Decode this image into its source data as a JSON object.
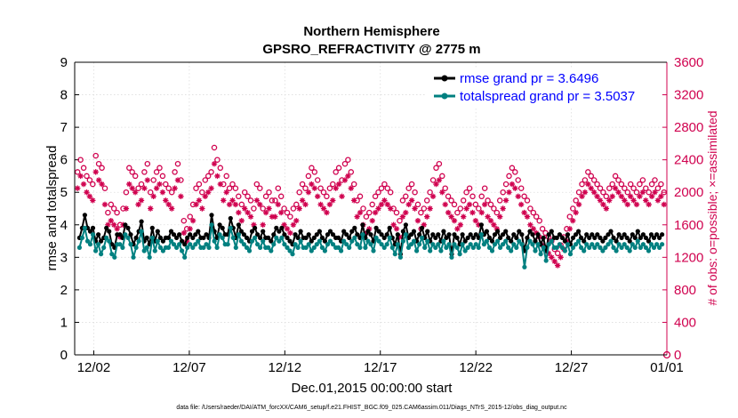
{
  "chart_data": {
    "type": "line",
    "title": "Northern Hemisphere",
    "subtitle": "GPSRO_REFRACTIVITY @ 2775 m",
    "xlabel": "Dec.01,2015 00:00:00 start",
    "ylabel_left": "rmse and totalspread",
    "ylabel_right": "# of obs: o=possible; ×=assimilated",
    "xlim": [
      0,
      31
    ],
    "ylim_left": [
      0,
      9
    ],
    "ylim_right": [
      0,
      3600
    ],
    "x_ticks": [
      {
        "value": 1,
        "label": "12/02"
      },
      {
        "value": 6,
        "label": "12/07"
      },
      {
        "value": 11,
        "label": "12/12"
      },
      {
        "value": 16,
        "label": "12/17"
      },
      {
        "value": 21,
        "label": "12/22"
      },
      {
        "value": 26,
        "label": "12/27"
      },
      {
        "value": 31,
        "label": "01/01"
      }
    ],
    "y_ticks_left": [
      "0",
      "1",
      "2",
      "3",
      "4",
      "5",
      "6",
      "7",
      "8",
      "9"
    ],
    "y_ticks_right": [
      "0",
      "400",
      "800",
      "1200",
      "1600",
      "2000",
      "2400",
      "2800",
      "3200",
      "3600"
    ],
    "colors": {
      "rmse": "#000000",
      "spread": "#008080",
      "obs": "#d0024f",
      "legend_text": "#0000ff"
    },
    "legend": [
      {
        "label": "rmse grand pr = 3.6496",
        "color": "#000000"
      },
      {
        "label": "totalspread grand pr = 3.5037",
        "color": "#008080"
      }
    ],
    "series": [
      {
        "name": "rmse",
        "axis": "left",
        "values": [
          3.6,
          3.9,
          4.3,
          3.9,
          3.8,
          3.9,
          3.5,
          3.7,
          3.5,
          3.6,
          3.9,
          3.8,
          3.4,
          3.3,
          3.7,
          3.7,
          3.6,
          4.0,
          3.9,
          3.7,
          3.4,
          3.6,
          3.8,
          4.1,
          3.5,
          3.6,
          3.4,
          3.9,
          3.5,
          3.8,
          3.6,
          3.5,
          3.6,
          3.6,
          3.8,
          3.7,
          3.6,
          3.7,
          3.5,
          3.4,
          3.6,
          3.7,
          3.6,
          3.7,
          3.8,
          3.6,
          3.6,
          3.7,
          3.6,
          4.3,
          3.8,
          3.6,
          4.0,
          3.9,
          3.7,
          3.7,
          4.2,
          3.9,
          3.6,
          4.0,
          3.8,
          3.7,
          3.6,
          3.5,
          3.8,
          3.9,
          3.7,
          3.6,
          3.8,
          3.6,
          3.6,
          3.5,
          3.7,
          3.9,
          3.8,
          3.9,
          3.7,
          3.6,
          3.5,
          3.4,
          3.7,
          3.6,
          3.8,
          3.6,
          3.6,
          3.7,
          3.5,
          3.6,
          3.7,
          3.8,
          3.6,
          3.5,
          3.7,
          3.8,
          3.7,
          3.6,
          3.6,
          3.5,
          3.8,
          3.7,
          3.6,
          3.8,
          3.9,
          3.7,
          3.6,
          4.0,
          3.6,
          3.8,
          3.7,
          3.5,
          3.9,
          3.8,
          3.7,
          3.6,
          3.7,
          3.9,
          3.6,
          3.4,
          3.7,
          3.1,
          3.8,
          4.0,
          3.6,
          3.7,
          3.8,
          3.5,
          3.7,
          3.9,
          3.6,
          3.8,
          3.5,
          3.7,
          3.6,
          3.7,
          3.5,
          3.8,
          3.6,
          3.7,
          3.1,
          3.7,
          3.6,
          3.4,
          3.7,
          3.5,
          3.6,
          3.7,
          3.6,
          3.7,
          3.6,
          4.0,
          3.7,
          3.8,
          3.6,
          3.5,
          3.7,
          3.8,
          3.6,
          3.7,
          3.8,
          3.6,
          3.5,
          3.7,
          3.6,
          3.8,
          3.7,
          3.2,
          3.6,
          3.8,
          3.7,
          3.5,
          3.7,
          3.4,
          3.6,
          3.2,
          3.7,
          3.8,
          3.6,
          3.6,
          3.7,
          3.6,
          3.5,
          3.7,
          3.4,
          3.6,
          3.7,
          3.8,
          3.6,
          3.5,
          3.7,
          3.6,
          3.7,
          3.6,
          3.7,
          3.6,
          3.5,
          3.6,
          3.7,
          3.8,
          3.6,
          3.5,
          3.7,
          3.6,
          3.7,
          3.6,
          3.5,
          3.7,
          3.6,
          3.8,
          3.6,
          3.7,
          3.6,
          3.5,
          3.7,
          3.6,
          3.7,
          3.6,
          3.7
        ]
      },
      {
        "name": "totalspread",
        "axis": "left",
        "values": [
          3.3,
          3.6,
          3.9,
          3.5,
          3.4,
          3.7,
          3.2,
          3.4,
          3.1,
          3.3,
          3.6,
          3.5,
          3.1,
          3.0,
          3.4,
          3.4,
          3.3,
          3.7,
          3.6,
          3.4,
          3.0,
          3.3,
          3.5,
          3.8,
          3.2,
          3.3,
          3.0,
          3.6,
          3.2,
          3.5,
          3.3,
          3.2,
          3.3,
          3.3,
          3.5,
          3.4,
          3.3,
          3.4,
          3.2,
          3.0,
          3.3,
          3.4,
          3.3,
          3.4,
          3.5,
          3.3,
          3.3,
          3.4,
          3.3,
          4.0,
          3.5,
          3.3,
          3.7,
          3.6,
          3.4,
          3.4,
          3.9,
          3.6,
          3.3,
          3.7,
          3.5,
          3.4,
          3.3,
          3.2,
          3.5,
          3.6,
          3.4,
          3.3,
          3.5,
          3.3,
          3.3,
          3.2,
          3.4,
          3.6,
          3.5,
          3.6,
          3.4,
          3.3,
          3.2,
          3.1,
          3.4,
          3.3,
          3.5,
          3.3,
          3.3,
          3.4,
          3.2,
          3.3,
          3.4,
          3.5,
          3.3,
          3.2,
          3.4,
          3.5,
          3.4,
          3.3,
          3.3,
          3.2,
          3.5,
          3.4,
          3.3,
          3.5,
          3.6,
          3.4,
          3.3,
          3.7,
          3.3,
          3.5,
          3.4,
          3.2,
          3.6,
          3.5,
          3.4,
          3.3,
          3.4,
          3.6,
          3.3,
          3.1,
          3.4,
          3.0,
          3.5,
          3.7,
          3.3,
          3.4,
          3.5,
          3.2,
          3.4,
          3.6,
          3.3,
          3.5,
          3.2,
          3.4,
          3.3,
          3.4,
          3.2,
          3.5,
          3.3,
          3.4,
          3.0,
          3.4,
          3.3,
          3.1,
          3.4,
          3.2,
          3.3,
          3.4,
          3.3,
          3.4,
          3.3,
          3.7,
          3.4,
          3.5,
          3.3,
          3.2,
          3.4,
          3.5,
          3.3,
          3.4,
          3.5,
          3.3,
          3.2,
          3.4,
          3.3,
          3.5,
          3.4,
          2.7,
          3.3,
          3.5,
          3.4,
          3.2,
          3.4,
          3.1,
          3.3,
          2.9,
          3.4,
          3.5,
          3.3,
          3.3,
          3.4,
          3.3,
          3.2,
          3.4,
          3.1,
          3.3,
          3.4,
          3.5,
          3.3,
          3.2,
          3.4,
          3.3,
          3.4,
          3.3,
          3.4,
          3.3,
          3.2,
          3.3,
          3.4,
          3.5,
          3.3,
          3.2,
          3.4,
          3.3,
          3.4,
          3.3,
          3.2,
          3.4,
          3.3,
          3.5,
          3.3,
          3.4,
          3.3,
          3.2,
          3.4,
          3.3,
          3.4,
          3.3,
          3.4
        ]
      },
      {
        "name": "obs possible",
        "axis": "right",
        "marker": "o",
        "values": [
          2250,
          2400,
          2300,
          2200,
          2150,
          2100,
          2450,
          2350,
          2300,
          2050,
          1750,
          1850,
          1800,
          1750,
          1600,
          1800,
          2000,
          2300,
          2250,
          2200,
          2050,
          2100,
          2250,
          2350,
          2000,
          2150,
          2250,
          2300,
          2200,
          2100,
          2050,
          2000,
          2250,
          2350,
          2150,
          1650,
          1550,
          1700,
          1850,
          2050,
          2100,
          2000,
          2150,
          2200,
          2250,
          2550,
          2400,
          2300,
          2100,
          2200,
          2050,
          2100,
          2050,
          1950,
          1850,
          2000,
          1950,
          1900,
          1800,
          2100,
          2050,
          1800,
          1950,
          2000,
          1900,
          1900,
          2050,
          1950,
          1800,
          1750,
          1700,
          1800,
          1850,
          2000,
          2100,
          2050,
          2200,
          2300,
          2250,
          2150,
          2050,
          2000,
          1950,
          2050,
          2100,
          2250,
          2300,
          2150,
          2350,
          2400,
          2250,
          2100,
          1900,
          1950,
          1800,
          1700,
          1750,
          1850,
          1950,
          2000,
          2050,
          2100,
          2050,
          2000,
          1800,
          1750,
          1650,
          1900,
          1950,
          2050,
          2100,
          2000,
          1850,
          1750,
          1800,
          1900,
          2000,
          2150,
          2300,
          2350,
          2200,
          2050,
          1950,
          1900,
          1850,
          1750,
          1800,
          1900,
          2000,
          2050,
          1950,
          1850,
          1800,
          1950,
          2050,
          1900,
          1850,
          1800,
          1750,
          1900,
          2000,
          2100,
          2200,
          2300,
          2250,
          2150,
          2050,
          1950,
          1900,
          1800,
          1750,
          1700,
          1650,
          1550,
          1500,
          1450,
          1400,
          1300,
          1250,
          1350,
          1450,
          1550,
          1700,
          1800,
          1900,
          2000,
          2100,
          2150,
          2250,
          2200,
          2150,
          2100,
          2050,
          2000,
          1950,
          2050,
          2100,
          2200,
          2150,
          2100,
          2050,
          2000,
          2100,
          2050,
          2000,
          2100,
          2150,
          2050,
          2000,
          2100,
          2150,
          2050,
          2100,
          2000
        ]
      },
      {
        "name": "obs assimilated",
        "axis": "right",
        "marker": "*",
        "values": [
          2050,
          2200,
          2100,
          2000,
          1950,
          1900,
          2250,
          2150,
          2100,
          1850,
          1600,
          1650,
          1600,
          1550,
          1450,
          1600,
          1800,
          2100,
          2050,
          2000,
          1850,
          1900,
          2050,
          2150,
          1800,
          1950,
          2050,
          2100,
          2000,
          1900,
          1850,
          1800,
          2050,
          2150,
          1950,
          1500,
          1400,
          1550,
          1650,
          1850,
          1900,
          1800,
          1950,
          2000,
          2050,
          2350,
          2200,
          2100,
          1900,
          2000,
          1850,
          1900,
          1850,
          1750,
          1650,
          1800,
          1750,
          1700,
          1600,
          1900,
          1850,
          1600,
          1750,
          1800,
          1700,
          1700,
          1850,
          1750,
          1600,
          1550,
          1500,
          1600,
          1650,
          1800,
          1900,
          1850,
          2000,
          2100,
          2050,
          1950,
          1850,
          1800,
          1750,
          1850,
          1900,
          2050,
          2100,
          1950,
          2150,
          2200,
          2050,
          1900,
          1700,
          1750,
          1600,
          1500,
          1550,
          1650,
          1750,
          1800,
          1850,
          1900,
          1850,
          1800,
          1600,
          1550,
          1450,
          1700,
          1750,
          1850,
          1900,
          1800,
          1650,
          1550,
          1600,
          1700,
          1800,
          1950,
          2100,
          2150,
          2000,
          1850,
          1750,
          1700,
          1650,
          1550,
          1600,
          1700,
          1800,
          1850,
          1750,
          1650,
          1600,
          1750,
          1850,
          1700,
          1650,
          1600,
          1550,
          1700,
          1800,
          1900,
          2000,
          2100,
          2050,
          1950,
          1850,
          1750,
          1700,
          1600,
          1550,
          1500,
          1450,
          1350,
          1300,
          1250,
          1200,
          1150,
          1100,
          1200,
          1300,
          1400,
          1550,
          1650,
          1750,
          1850,
          1950,
          2000,
          2100,
          2050,
          2000,
          1950,
          1900,
          1850,
          1800,
          1900,
          1950,
          2050,
          2000,
          1950,
          1900,
          1850,
          1950,
          1900,
          1850,
          1950,
          2000,
          1900,
          1850,
          1950,
          2000,
          1900,
          1950,
          1850
        ]
      }
    ]
  },
  "footnote": "data file: /Users/raeder/DAI/ATM_forcXX/CAM6_setup/f.e21.FHIST_BGC.f09_025.CAM6assim.011/Diags_NTrS_2015-12/obs_diag_output.nc"
}
